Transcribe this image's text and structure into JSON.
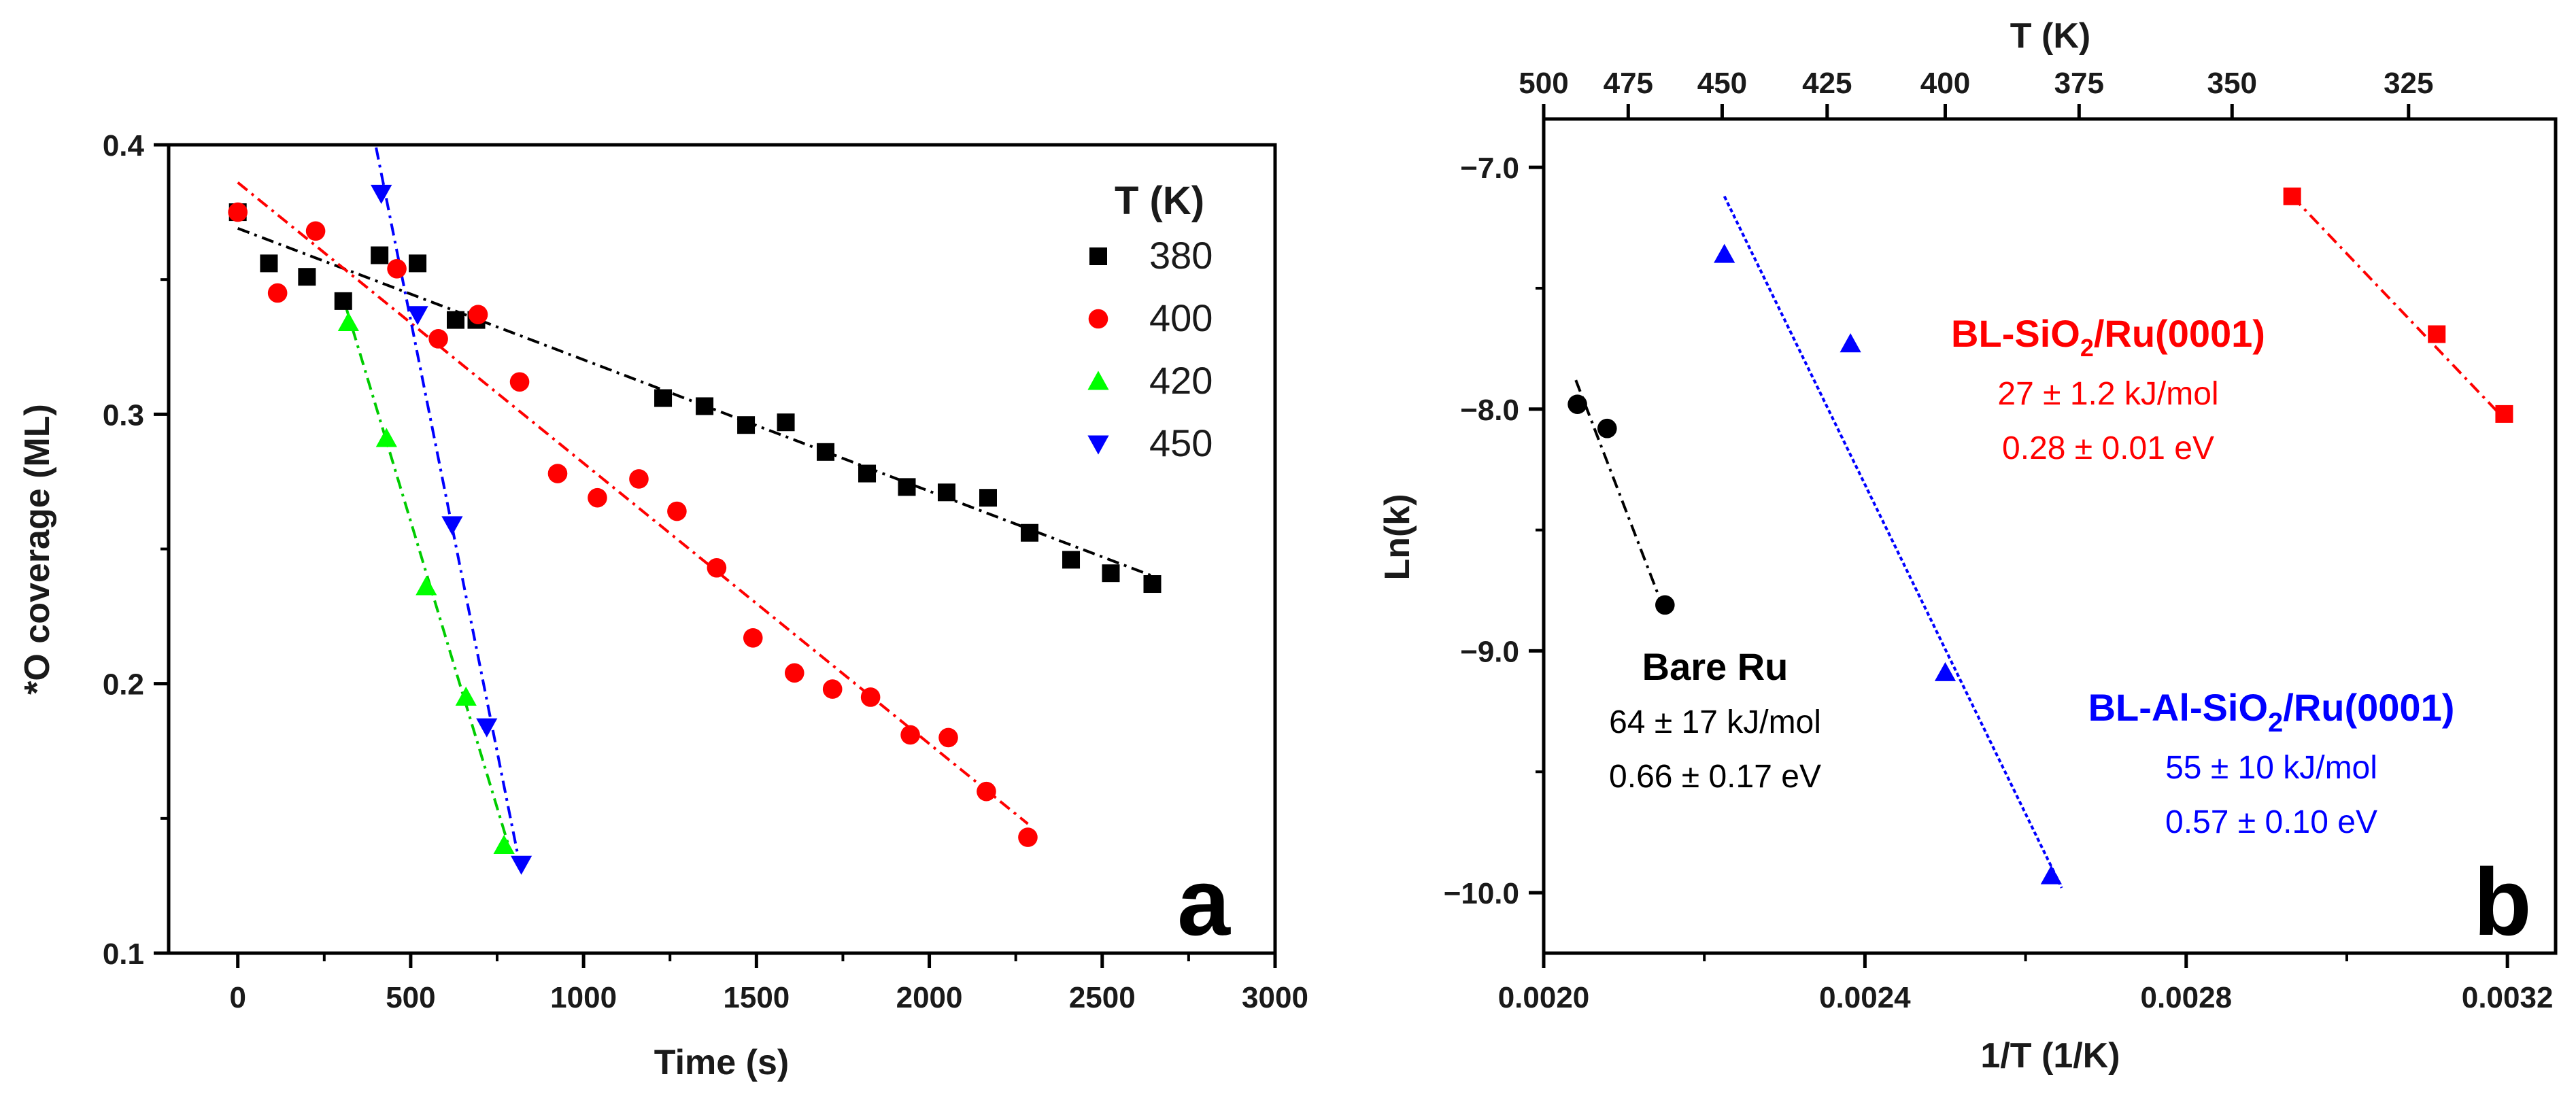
{
  "chart_data": [
    {
      "type": "scatter",
      "panel_letter": "a",
      "xlabel": "Time (s)",
      "ylabel": "*O coverage (ML)",
      "xlim": [
        -200,
        3000
      ],
      "ylim": [
        0.1,
        0.4
      ],
      "xticks": [
        0,
        500,
        1000,
        1500,
        2000,
        2500,
        3000
      ],
      "yticks": [
        0.1,
        0.2,
        0.3,
        0.4
      ],
      "ytick_labels": [
        "0.1",
        "0.2",
        "0.3",
        "0.4"
      ],
      "legend_title": "T (K)",
      "legend_position": "top-right",
      "series": [
        {
          "name": "380",
          "color": "#000000",
          "marker": "square",
          "x": [
            0,
            90,
            200,
            305,
            410,
            520,
            630,
            690,
            1230,
            1350,
            1470,
            1585,
            1700,
            1820,
            1935,
            2050,
            2170,
            2290,
            2410,
            2525,
            2645
          ],
          "y": [
            0.375,
            0.356,
            0.351,
            0.342,
            0.359,
            0.356,
            0.335,
            0.335,
            0.306,
            0.303,
            0.296,
            0.297,
            0.286,
            0.278,
            0.273,
            0.271,
            0.269,
            0.256,
            0.246,
            0.241,
            0.237
          ],
          "fit": [
            [
              0,
              0.369
            ],
            [
              2645,
              0.24
            ]
          ]
        },
        {
          "name": "400",
          "color": "#ff0000",
          "marker": "circle",
          "x": [
            0,
            115,
            225,
            460,
            580,
            695,
            815,
            925,
            1040,
            1160,
            1270,
            1385,
            1490,
            1610,
            1720,
            1830,
            1945,
            2055,
            2165,
            2285
          ],
          "y": [
            0.375,
            0.345,
            0.368,
            0.354,
            0.328,
            0.337,
            0.312,
            0.278,
            0.269,
            0.276,
            0.264,
            0.243,
            0.217,
            0.204,
            0.198,
            0.195,
            0.181,
            0.18,
            0.16,
            0.143
          ],
          "fit": [
            [
              0,
              0.386
            ],
            [
              2285,
              0.148
            ]
          ]
        },
        {
          "name": "420",
          "color": "#00ff00",
          "marker": "triangle-up",
          "x": [
            320,
            430,
            545,
            660,
            770
          ],
          "y": [
            0.334,
            0.291,
            0.236,
            0.195,
            0.14
          ],
          "fit": [
            [
              310,
              0.341
            ],
            [
              790,
              0.137
            ]
          ]
        },
        {
          "name": "450",
          "color": "#0000ff",
          "marker": "triangle-down",
          "x": [
            415,
            520,
            620,
            720,
            820
          ],
          "y": [
            0.382,
            0.337,
            0.259,
            0.184,
            0.133
          ],
          "fit": [
            [
              400,
              0.399
            ],
            [
              820,
              0.13
            ]
          ]
        }
      ]
    },
    {
      "type": "scatter",
      "panel_letter": "b",
      "xlabel": "1/T (1/K)",
      "ylabel": "Ln(k)",
      "top_xlabel": "T (K)",
      "xlim": [
        0.002,
        0.00326
      ],
      "ylim": [
        -10.25,
        -6.8
      ],
      "xticks": [
        0.002,
        0.0024,
        0.0028,
        0.0032
      ],
      "xtick_labels": [
        "0.0020",
        "0.0024",
        "0.0028",
        "0.0032"
      ],
      "yticks": [
        -10,
        -9,
        -8,
        -7
      ],
      "ytick_labels": [
        "−10.0",
        "−9.0",
        "−8.0",
        "−7.0"
      ],
      "top_ticks": [
        500,
        475,
        450,
        425,
        400,
        375,
        350,
        325
      ],
      "series": [
        {
          "name": "Bare Ru",
          "color": "#000000",
          "marker": "circle",
          "x": [
            0.002042,
            0.002079,
            0.002151
          ],
          "y": [
            -7.98,
            -8.08,
            -8.81
          ],
          "fit": [
            [
              0.00204,
              -7.88
            ],
            [
              0.002151,
              -8.84
            ]
          ],
          "annotation": {
            "title": "Bare Ru",
            "lines": [
              "64 ± 17 kJ/mol",
              "0.66 ± 0.17 eV"
            ]
          }
        },
        {
          "name": "BL-SiO2/Ru(0001)",
          "color": "#ff0000",
          "marker": "square",
          "x": [
            0.002932,
            0.003112,
            0.003196
          ],
          "y": [
            -7.12,
            -7.69,
            -8.02
          ],
          "fit": [
            [
              0.002932,
              -7.12
            ],
            [
              0.003196,
              -8.04
            ]
          ],
          "annotation": {
            "title_main": "BL-SiO",
            "title_sub": "2",
            "title_end": "/Ru(0001)",
            "lines": [
              "27 ± 1.2 kJ/mol",
              "0.28 ± 0.01 eV"
            ]
          }
        },
        {
          "name": "BL-Al-SiO2/Ru(0001)",
          "color": "#0000ff",
          "marker": "triangle-up",
          "x": [
            0.002225,
            0.002382,
            0.0025,
            0.002632
          ],
          "y": [
            -7.36,
            -7.73,
            -9.09,
            -9.93
          ],
          "fit": [
            [
              0.002225,
              -7.12
            ],
            [
              0.002645,
              -9.98
            ]
          ],
          "annotation": {
            "title_main": "BL-Al-SiO",
            "title_sub": "2",
            "title_end": "/Ru(0001)",
            "lines": [
              "55 ± 10 kJ/mol",
              "0.57 ± 0.10 eV"
            ]
          }
        }
      ]
    }
  ]
}
